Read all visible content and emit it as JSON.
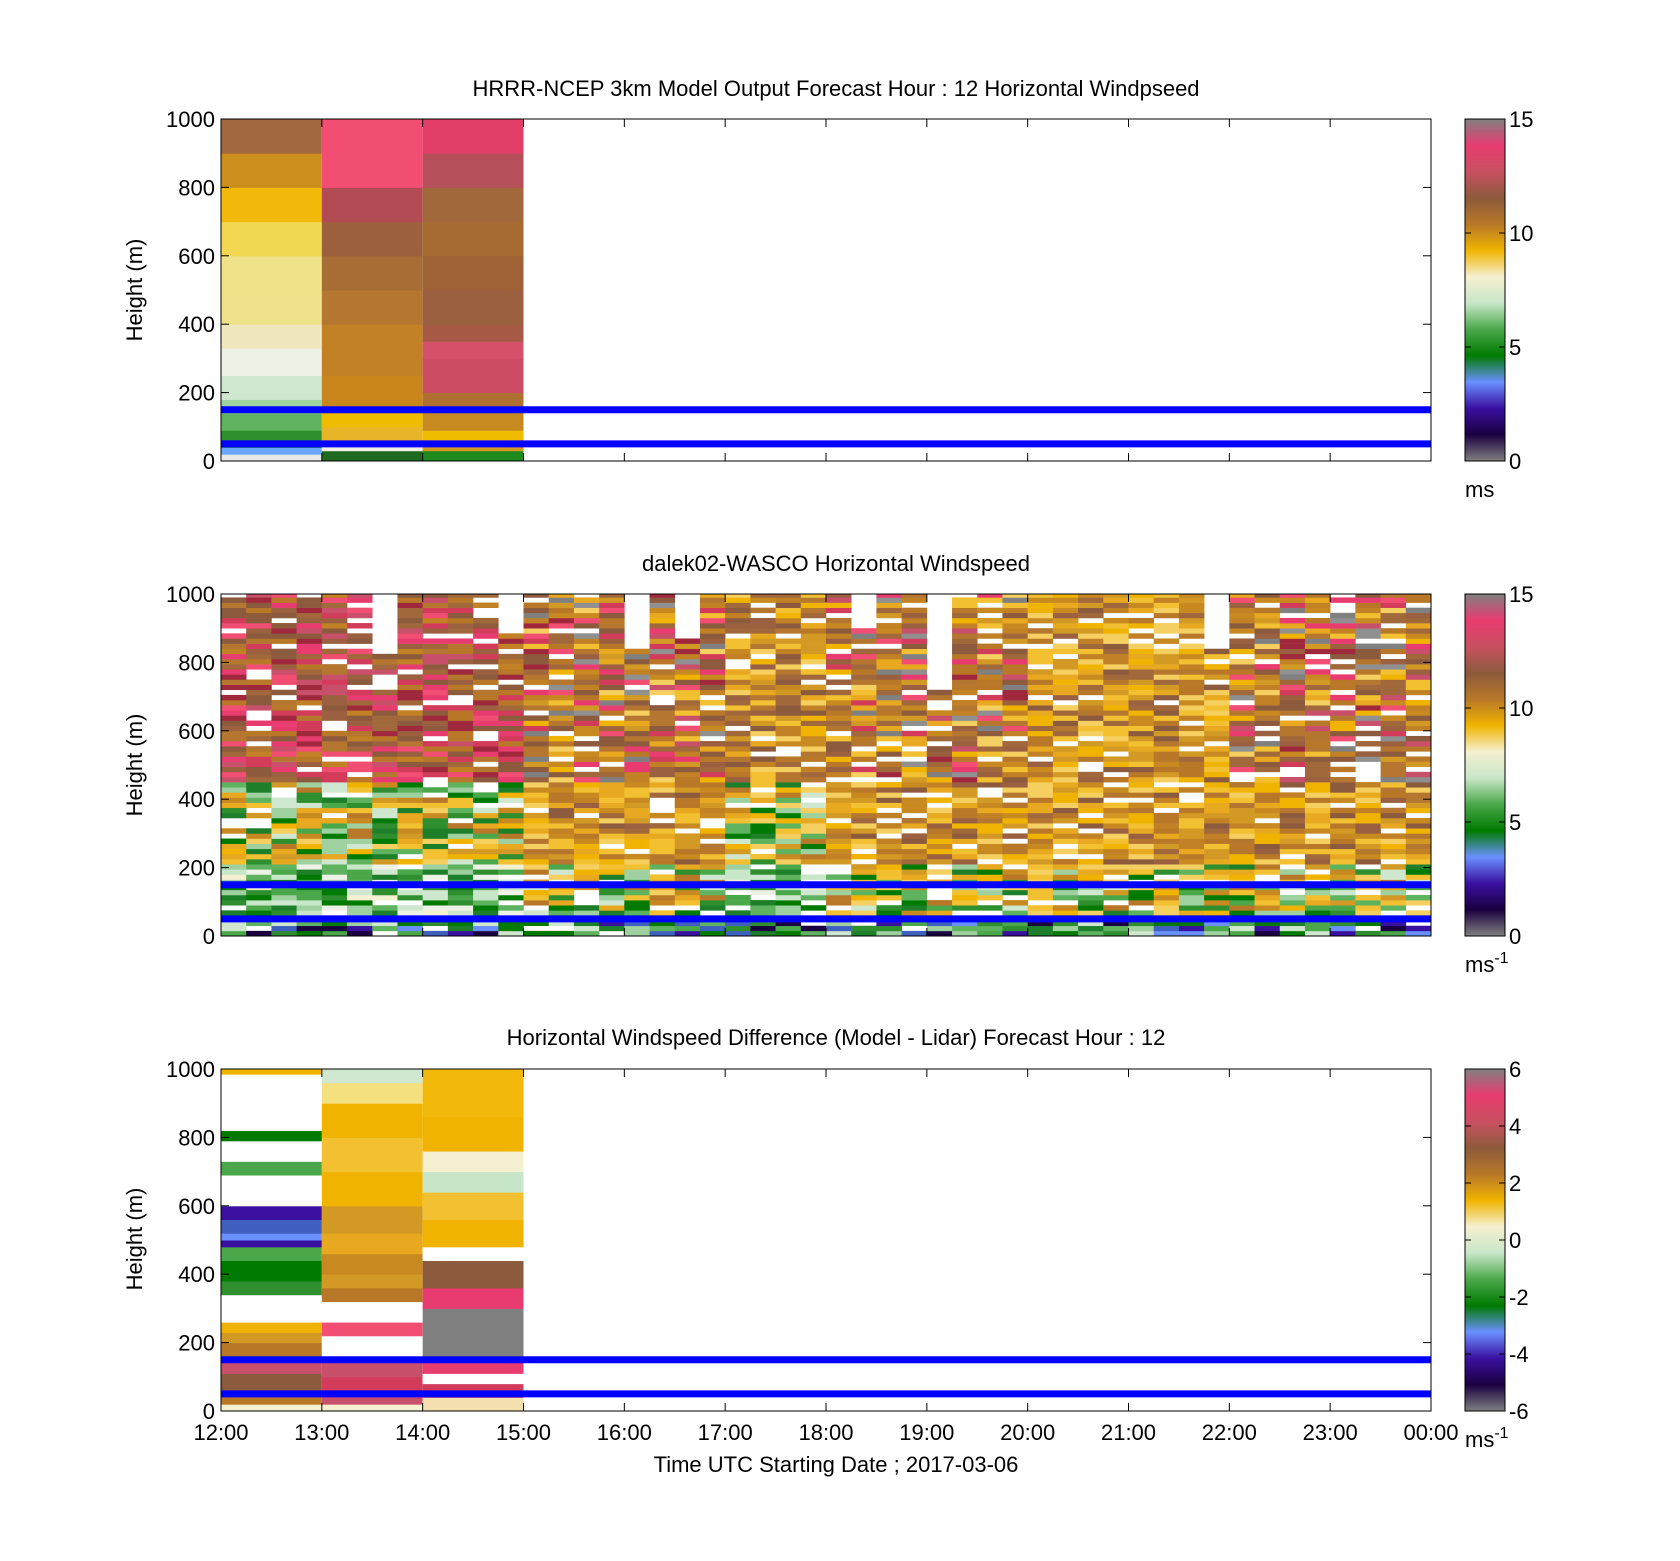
{
  "time_axis": {
    "ticks": [
      "12:00",
      "13:00",
      "14:00",
      "15:00",
      "16:00",
      "17:00",
      "18:00",
      "19:00",
      "20:00",
      "21:00",
      "22:00",
      "23:00",
      "00:00"
    ],
    "xlabel": "Time UTC  Starting Date ; 2017-03-06"
  },
  "chart_data": [
    {
      "type": "heatmap",
      "title": "HRRR-NCEP 3km Model Output   Forecast Hour : 12 Horizontal Windpseed",
      "ylabel": "Height (m)",
      "ylim": [
        0,
        1000
      ],
      "yticks": [
        "0",
        "200",
        "400",
        "600",
        "800",
        "1000"
      ],
      "x_hours": [
        0,
        12
      ],
      "reference_lines_m": [
        50,
        150
      ],
      "reference_line_color": "#0000ff",
      "colorbar": {
        "min": 0,
        "max": 15,
        "ticks": [
          "0",
          "5",
          "10",
          "15"
        ],
        "unit_label": "ms",
        "unit_sup": "",
        "stops": [
          "#808080",
          "#1a0040",
          "#3a10a0",
          "#6a90ff",
          "#007a00",
          "#4aa84a",
          "#c8e6c8",
          "#f5f0d0",
          "#f0b400",
          "#b87828",
          "#8c5a3c",
          "#c85060",
          "#e83c70",
          "#808080"
        ]
      },
      "data": {
        "type": "columns",
        "columns": [
          {
            "start": 0,
            "end": 1,
            "cells": [
              [
                0,
                20,
                "#e8e8e8"
              ],
              [
                20,
                40,
                "#6aa8ff"
              ],
              [
                40,
                60,
                "#1d7f2a"
              ],
              [
                60,
                90,
                "#2f8f2f"
              ],
              [
                90,
                140,
                "#5fb35f"
              ],
              [
                140,
                180,
                "#9fd09f"
              ],
              [
                180,
                250,
                "#cfe7cf"
              ],
              [
                250,
                330,
                "#eef2e6"
              ],
              [
                330,
                400,
                "#f0e7be"
              ],
              [
                400,
                480,
                "#f0e28a"
              ],
              [
                480,
                600,
                "#f0e288"
              ],
              [
                600,
                700,
                "#f1d850"
              ],
              [
                700,
                800,
                "#f2b90a"
              ],
              [
                800,
                900,
                "#cc8f1e"
              ],
              [
                900,
                1000,
                "#a2683f"
              ]
            ]
          },
          {
            "start": 1,
            "end": 2,
            "cells": [
              [
                0,
                30,
                "#1e6a1e"
              ],
              [
                30,
                60,
                "#f2f0e6"
              ],
              [
                60,
                100,
                "#e8b528"
              ],
              [
                100,
                150,
                "#f0bc00"
              ],
              [
                150,
                250,
                "#c8861d"
              ],
              [
                250,
                400,
                "#c18124"
              ],
              [
                400,
                500,
                "#b57730"
              ],
              [
                500,
                600,
                "#a86d34"
              ],
              [
                600,
                700,
                "#9c613c"
              ],
              [
                700,
                800,
                "#b34b55"
              ],
              [
                800,
                1000,
                "#f24d72"
              ]
            ]
          },
          {
            "start": 2,
            "end": 3,
            "cells": [
              [
                0,
                30,
                "#1c8a1c"
              ],
              [
                30,
                60,
                "#d29a24"
              ],
              [
                60,
                90,
                "#f0bc00"
              ],
              [
                90,
                150,
                "#c78a20"
              ],
              [
                150,
                200,
                "#b07031"
              ],
              [
                200,
                300,
                "#cc4c64"
              ],
              [
                300,
                350,
                "#d5506a"
              ],
              [
                350,
                400,
                "#a65a45"
              ],
              [
                400,
                500,
                "#9a6040"
              ],
              [
                500,
                600,
                "#9e6236"
              ],
              [
                600,
                700,
                "#a56b30"
              ],
              [
                700,
                800,
                "#a0683b"
              ],
              [
                800,
                900,
                "#b5505a"
              ],
              [
                900,
                1000,
                "#e23e67"
              ]
            ]
          }
        ]
      }
    },
    {
      "type": "heatmap",
      "title": "dalek02-WASCO  Horizontal Windspeed",
      "ylabel": "Height (m)",
      "ylim": [
        0,
        1000
      ],
      "yticks": [
        "0",
        "200",
        "400",
        "600",
        "800",
        "1000"
      ],
      "x_hours": [
        0,
        12
      ],
      "reference_lines_m": [
        50,
        150
      ],
      "reference_line_color": "#0000ff",
      "colorbar": {
        "min": 0,
        "max": 15,
        "ticks": [
          "0",
          "5",
          "10",
          "15"
        ],
        "unit_label": "ms",
        "unit_sup": "-1",
        "stops": [
          "#808080",
          "#1a0040",
          "#3a10a0",
          "#6a90ff",
          "#007a00",
          "#4aa84a",
          "#c8e6c8",
          "#f5f0d0",
          "#f0b400",
          "#b87828",
          "#8c5a3c",
          "#c85060",
          "#e83c70",
          "#808080"
        ]
      },
      "data": {
        "type": "lidar",
        "columns_per_hour": 4,
        "hours": 12,
        "bin_m": 15,
        "regime_by_hour": [
          "pink",
          "pink",
          "pink",
          "mixed",
          "mixed",
          "green",
          "mixed",
          "mixed",
          "orange",
          "orange",
          "mixed",
          "mixed"
        ],
        "palette": {
          "pink": [
            "#e83c70",
            "#d23c5a",
            "#f24d72",
            "#a0283c",
            "#c8506a",
            "#8c5a3c",
            "#b87828"
          ],
          "orange": [
            "#f0b400",
            "#e8a820",
            "#d29a24",
            "#f2c030",
            "#c88a20",
            "#b87828",
            "#f5d060"
          ],
          "brown": [
            "#8c5a3c",
            "#a0683b",
            "#b57730",
            "#9a6040",
            "#c18124"
          ],
          "green": [
            "#1d7f2a",
            "#2f8f2f",
            "#5fb35f",
            "#9fd09f",
            "#cfe7cf",
            "#007a00",
            "#4aa84a"
          ],
          "blue": [
            "#1a0040",
            "#3a10a0",
            "#6a90ff",
            "#4060c0"
          ],
          "light": [
            "#f5f0d0",
            "#eef2e6",
            "#c8e6c8"
          ],
          "gray": [
            "#808080",
            "#909090"
          ]
        }
      }
    },
    {
      "type": "heatmap",
      "title": "Horizontal Windspeed Difference (Model - Lidar) Forecast Hour : 12",
      "ylabel": "Height (m)",
      "ylim": [
        0,
        1000
      ],
      "yticks": [
        "0",
        "200",
        "400",
        "600",
        "800",
        "1000"
      ],
      "x_hours": [
        0,
        12
      ],
      "reference_lines_m": [
        50,
        150
      ],
      "reference_line_color": "#0000ff",
      "colorbar": {
        "min": -6,
        "max": 6,
        "ticks": [
          "-6",
          "-4",
          "-2",
          "0",
          "2",
          "4",
          "6"
        ],
        "unit_label": "ms",
        "unit_sup": "-1",
        "stops": [
          "#808080",
          "#1a0040",
          "#3a10a0",
          "#6a90ff",
          "#007a00",
          "#4aa84a",
          "#c8e6c8",
          "#f5f0d0",
          "#f0b400",
          "#b87828",
          "#8c5a3c",
          "#c85060",
          "#e83c70",
          "#808080"
        ]
      },
      "data": {
        "type": "columns",
        "columns": [
          {
            "start": 0,
            "end": 1,
            "cells": [
              [
                0,
                20,
                "#f5f0d0"
              ],
              [
                20,
                60,
                "#b87828"
              ],
              [
                60,
                110,
                "#8c5a3c"
              ],
              [
                110,
                150,
                "#c8506a"
              ],
              [
                150,
                200,
                "#b87828"
              ],
              [
                200,
                230,
                "#d29a24"
              ],
              [
                230,
                260,
                "#f0b400"
              ],
              [
                260,
                340,
                "#ffffff"
              ],
              [
                340,
                380,
                "#2f8f2f"
              ],
              [
                380,
                440,
                "#007a00"
              ],
              [
                440,
                480,
                "#4aa84a"
              ],
              [
                480,
                500,
                "#3a10a0"
              ],
              [
                500,
                520,
                "#6a90ff"
              ],
              [
                520,
                560,
                "#4060c0"
              ],
              [
                560,
                600,
                "#3a10a0"
              ],
              [
                600,
                690,
                "#ffffff"
              ],
              [
                690,
                730,
                "#4aa84a"
              ],
              [
                730,
                790,
                "#ffffff"
              ],
              [
                790,
                820,
                "#007a00"
              ],
              [
                820,
                985,
                "#ffffff"
              ],
              [
                985,
                1000,
                "#f0b400"
              ]
            ]
          },
          {
            "start": 1,
            "end": 2,
            "cells": [
              [
                0,
                20,
                "#f5f0d0"
              ],
              [
                20,
                60,
                "#c8506a"
              ],
              [
                60,
                100,
                "#d23c5a"
              ],
              [
                100,
                150,
                "#c8506a"
              ],
              [
                150,
                180,
                "#ffffff"
              ],
              [
                180,
                220,
                "#ffffff"
              ],
              [
                220,
                260,
                "#f24d72"
              ],
              [
                260,
                320,
                "#ffffff"
              ],
              [
                320,
                360,
                "#b87828"
              ],
              [
                360,
                400,
                "#d29a24"
              ],
              [
                400,
                460,
                "#c88a20"
              ],
              [
                460,
                520,
                "#e8a820"
              ],
              [
                520,
                600,
                "#d29a24"
              ],
              [
                600,
                700,
                "#f0b400"
              ],
              [
                700,
                800,
                "#f2c030"
              ],
              [
                800,
                900,
                "#f0b400"
              ],
              [
                900,
                960,
                "#f5e080"
              ],
              [
                960,
                1000,
                "#cfe7cf"
              ]
            ]
          },
          {
            "start": 2,
            "end": 3,
            "cells": [
              [
                0,
                40,
                "#f5e0b0"
              ],
              [
                40,
                80,
                "#d23c5a"
              ],
              [
                80,
                110,
                "#ffffff"
              ],
              [
                110,
                150,
                "#e83c70"
              ],
              [
                150,
                300,
                "#808080"
              ],
              [
                300,
                360,
                "#e83c70"
              ],
              [
                360,
                440,
                "#8c5a3c"
              ],
              [
                440,
                480,
                "#ffffff"
              ],
              [
                480,
                560,
                "#f0b400"
              ],
              [
                560,
                640,
                "#f2c030"
              ],
              [
                640,
                700,
                "#c8e6c8"
              ],
              [
                700,
                760,
                "#f5f0d0"
              ],
              [
                760,
                860,
                "#f0b400"
              ],
              [
                860,
                1000,
                "#f2b90a"
              ]
            ]
          }
        ]
      }
    }
  ]
}
